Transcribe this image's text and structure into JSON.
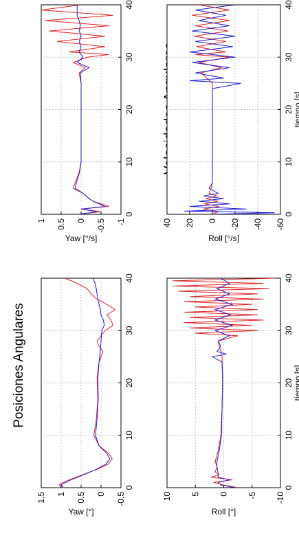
{
  "figure_titles": {
    "left": "Posiciones Angulares",
    "right": "Velocidades Angulares"
  },
  "colors": {
    "series_1": "#e02020",
    "series_2": "#1a1ad8",
    "grid": "#9a9a9a"
  },
  "chart_data": [
    {
      "type": "line",
      "panel": "posiciones-yaw",
      "title": "Posiciones Angulares",
      "xlabel": "",
      "ylabel": "Yaw [°]",
      "xlim": [
        0,
        40
      ],
      "ylim": [
        -0.5,
        1.5
      ],
      "xticks": [
        "0",
        "10",
        "20",
        "30",
        "40"
      ],
      "yticks": [
        "-0.5",
        "0",
        "0.5",
        "1",
        "1.5"
      ],
      "grid": true,
      "series": [
        {
          "color": "#e02020",
          "x": [
            0,
            0.6,
            1.5,
            2.5,
            3.5,
            4.5,
            5.5,
            6.5,
            8,
            10,
            13,
            17,
            21,
            24,
            26,
            27,
            28,
            29,
            30,
            31,
            32,
            33,
            34,
            35,
            36,
            37,
            38,
            39,
            40
          ],
          "y": [
            1.0,
            1.05,
            0.8,
            0.45,
            0.1,
            -0.18,
            -0.28,
            -0.2,
            0.05,
            0.18,
            0.12,
            0.08,
            0.1,
            0.05,
            -0.05,
            0.05,
            0.1,
            0.0,
            -0.1,
            -0.3,
            -0.25,
            -0.15,
            -0.35,
            -0.15,
            0.1,
            0.25,
            0.35,
            0.6,
            0.9
          ]
        },
        {
          "color": "#1a1ad8",
          "x": [
            0,
            0.6,
            1.5,
            2.5,
            3.5,
            4.5,
            5.5,
            6.5,
            8,
            10,
            13,
            17,
            21,
            24,
            26,
            28,
            30,
            31,
            32,
            33,
            34,
            35,
            36,
            37,
            38,
            39,
            40
          ],
          "y": [
            0.95,
            1.0,
            0.75,
            0.42,
            0.12,
            -0.12,
            -0.22,
            -0.15,
            0.05,
            0.14,
            0.1,
            0.07,
            0.08,
            0.05,
            0.02,
            0.0,
            -0.02,
            -0.08,
            -0.06,
            0.0,
            0.02,
            0.05,
            0.08,
            0.1,
            0.12,
            0.15,
            0.2
          ]
        }
      ]
    },
    {
      "type": "line",
      "panel": "posiciones-roll",
      "xlabel": "tiempo [s]",
      "ylabel": "Roll [°]",
      "xlim": [
        0,
        40
      ],
      "ylim": [
        -10,
        10
      ],
      "xticks": [
        "0",
        "10",
        "20",
        "30",
        "40"
      ],
      "yticks": [
        "-10",
        "-5",
        "0",
        "5",
        "10"
      ],
      "grid": true,
      "series": [
        {
          "color": "#e02020",
          "x": [
            0,
            0.5,
            1,
            1.5,
            2,
            2.5,
            3,
            4,
            5,
            7,
            10,
            15,
            20,
            25,
            28,
            29,
            29.5,
            30,
            30.5,
            31,
            31.5,
            32,
            32.5,
            33,
            33.5,
            34,
            34.5,
            35,
            35.5,
            36,
            36.5,
            37,
            37.5,
            38,
            38.5,
            39,
            39.5,
            40
          ],
          "y": [
            -2.5,
            0,
            1.8,
            -1.5,
            2.2,
            0.8,
            1.5,
            1.2,
            1.5,
            1.0,
            0.5,
            0.3,
            0.2,
            0.3,
            1.0,
            -2.5,
            5,
            -6,
            6,
            -5,
            7,
            -7,
            6,
            -6,
            7,
            -6,
            5,
            -5,
            7,
            -7,
            6,
            -6,
            8,
            -8,
            9,
            -7,
            9,
            -9
          ]
        },
        {
          "color": "#1a1ad8",
          "x": [
            0,
            0.5,
            1,
            1.5,
            2,
            3,
            4,
            5,
            7,
            10,
            15,
            20,
            24,
            25,
            25.5,
            26,
            27,
            28,
            29,
            30,
            31,
            32,
            33,
            34,
            35,
            36,
            37,
            38,
            39,
            40
          ],
          "y": [
            -2,
            0.5,
            1.0,
            -1.0,
            1.0,
            1.0,
            1.2,
            1.2,
            0.8,
            0.4,
            0.3,
            0.2,
            0.3,
            2.0,
            -0.5,
            1.2,
            0.5,
            1.0,
            -1.0,
            1.5,
            -1.5,
            1.5,
            -1.2,
            1.5,
            -1.5,
            1.5,
            -1.0,
            1.2,
            -1.0,
            0.5
          ]
        }
      ]
    },
    {
      "type": "line",
      "panel": "velocidades-yaw",
      "title": "Velocidades Angulares",
      "xlabel": "",
      "ylabel": "Yaw [°/s]",
      "xlim": [
        0,
        40
      ],
      "ylim": [
        -1,
        1
      ],
      "xticks": [
        "0",
        "10",
        "20",
        "30",
        "40"
      ],
      "yticks": [
        "-1",
        "-0.5",
        "0",
        "0.5",
        "1"
      ],
      "grid": true,
      "series": [
        {
          "color": "#e02020",
          "x": [
            0,
            0.5,
            1,
            1.5,
            2,
            2.5,
            3,
            4,
            5,
            6,
            8,
            10,
            15,
            20,
            25,
            27,
            28,
            29,
            30,
            30.5,
            31,
            32,
            33,
            34,
            35,
            36,
            37,
            38,
            39,
            40
          ],
          "y": [
            0.1,
            -0.5,
            0.0,
            -0.7,
            -0.5,
            -0.3,
            -0.2,
            -0.05,
            0.2,
            0.15,
            0.05,
            0.0,
            0.0,
            0.0,
            0.0,
            0.05,
            -0.1,
            0.2,
            -0.15,
            -0.7,
            0.3,
            -0.6,
            0.6,
            -0.6,
            0.8,
            -0.7,
            0.9,
            -0.8,
            1.0,
            0.0
          ]
        },
        {
          "color": "#1a1ad8",
          "x": [
            0,
            0.5,
            1,
            1.5,
            2,
            2.5,
            3,
            4,
            5,
            6,
            8,
            10,
            15,
            20,
            25,
            27,
            28,
            29,
            30,
            31,
            32,
            33,
            34,
            35,
            36,
            37,
            38,
            39,
            40
          ],
          "y": [
            0.05,
            -0.4,
            0.0,
            -0.6,
            -0.45,
            -0.3,
            -0.2,
            -0.05,
            0.15,
            0.12,
            0.04,
            0.0,
            0.0,
            0.0,
            0.0,
            0.02,
            -0.2,
            0.1,
            -0.05,
            0.05,
            0.0,
            0.05,
            0.0,
            0.05,
            0.02,
            0.05,
            0.1,
            0.1,
            0.1
          ]
        }
      ]
    },
    {
      "type": "line",
      "panel": "velocidades-roll",
      "xlabel": "tiempo [s]",
      "ylabel": "Roll [°/s]",
      "xlim": [
        0,
        40
      ],
      "ylim": [
        -60,
        40
      ],
      "xticks": [
        "0",
        "10",
        "20",
        "30",
        "40"
      ],
      "yticks": [
        "-60",
        "-40",
        "-20",
        "0",
        "20",
        "40"
      ],
      "grid": true,
      "series": [
        {
          "color": "#e02020",
          "x": [
            0,
            0.5,
            1,
            1.5,
            2,
            2.5,
            3,
            3.5,
            4,
            5,
            6,
            8,
            10,
            15,
            20,
            25,
            27,
            28,
            29,
            30,
            30.5,
            31,
            32,
            33,
            34,
            35,
            36,
            37,
            38,
            39,
            40
          ],
          "y": [
            0,
            -5,
            8,
            -6,
            7,
            -5,
            6,
            -4,
            3,
            1,
            0,
            0,
            0,
            0,
            0,
            0,
            10,
            -8,
            12,
            -15,
            15,
            -12,
            14,
            -12,
            16,
            -14,
            15,
            -15,
            18,
            -15,
            12
          ]
        },
        {
          "color": "#1a1ad8",
          "x": [
            0,
            0.3,
            0.6,
            1,
            1.5,
            2,
            2.5,
            3,
            3.5,
            4,
            5,
            6,
            8,
            10,
            15,
            20,
            24,
            25,
            25.5,
            26,
            27,
            28,
            29,
            30,
            31,
            32,
            33,
            34,
            35,
            36,
            37,
            38,
            39,
            40
          ],
          "y": [
            0,
            -55,
            25,
            -30,
            20,
            -15,
            12,
            -10,
            8,
            -5,
            3,
            0,
            0,
            0,
            0,
            0,
            0,
            -25,
            20,
            -10,
            15,
            -15,
            18,
            -20,
            20,
            -18,
            15,
            -20,
            18,
            -15,
            12,
            -12,
            15,
            -20
          ]
        }
      ]
    }
  ]
}
